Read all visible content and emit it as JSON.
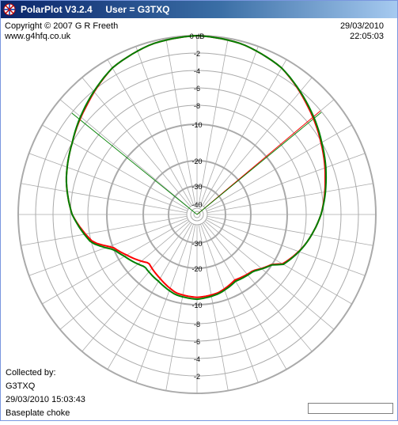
{
  "window": {
    "title": "PolarPlot V3.2.4     User = G3TXQ"
  },
  "header": {
    "copyright": "Copyright © 2007 G R Freeth",
    "website": "www.g4hfq.co.uk",
    "date": "29/03/2010",
    "time": "22:05:03"
  },
  "footer": {
    "collected_by_label": "Collected by:",
    "collector": "G3TXQ",
    "collected_datetime": "29/03/2010 15:03:43",
    "description": "Baseplate choke"
  },
  "plot": {
    "top_scale_labels": [
      "0 dB",
      "-2",
      "-4",
      "-6",
      "-8",
      "-10",
      "-20",
      "-30",
      "-40"
    ],
    "bottom_scale_labels": [
      "-30",
      "-20",
      "-10",
      "-8",
      "-6",
      "-4",
      "-2"
    ],
    "colors": {
      "red_trace": "#ff0000",
      "green_trace": "#008000",
      "grid": "#aaaaaa"
    }
  },
  "chart_data": {
    "type": "polar",
    "r_scale_db": [
      0,
      -2,
      -4,
      -6,
      -8,
      -10,
      -20,
      -30,
      -40
    ],
    "series": [
      {
        "color": "#ff0000",
        "angle_deg": [
          0,
          15,
          30,
          45,
          60,
          75,
          90,
          105,
          120,
          135,
          150,
          165,
          180,
          195,
          210,
          225,
          240,
          255,
          270,
          285,
          300,
          315,
          330,
          345,
          360
        ],
        "db": [
          0,
          -0.3,
          -1.1,
          -2.7,
          -4.1,
          -5.3,
          -6.3,
          -7.6,
          -9.1,
          -13.0,
          -14.0,
          -12.5,
          -12.0,
          -12.5,
          -14.5,
          -16.0,
          -12.5,
          -8.2,
          -6.2,
          -5.0,
          -4.0,
          -2.7,
          -1.1,
          -0.3,
          0
        ]
      },
      {
        "color": "#008000",
        "angle_deg": [
          0,
          15,
          30,
          45,
          60,
          75,
          90,
          105,
          120,
          135,
          150,
          165,
          180,
          195,
          210,
          225,
          240,
          255,
          270,
          285,
          300,
          315,
          330,
          345,
          360
        ],
        "db": [
          0,
          -0.3,
          -1.1,
          -2.6,
          -4.0,
          -5.2,
          -6.3,
          -7.6,
          -9.0,
          -12.8,
          -13.6,
          -12.2,
          -11.5,
          -12.0,
          -13.6,
          -14.5,
          -11.8,
          -8.0,
          -6.2,
          -5.0,
          -4.0,
          -2.6,
          -1.1,
          -0.3,
          0
        ]
      }
    ],
    "markers": [
      {
        "angle_deg": 50,
        "color": "#ff0000"
      },
      {
        "angle_deg": 50,
        "color": "#008000"
      },
      {
        "angle_deg": 309,
        "color": "#008000"
      }
    ]
  }
}
